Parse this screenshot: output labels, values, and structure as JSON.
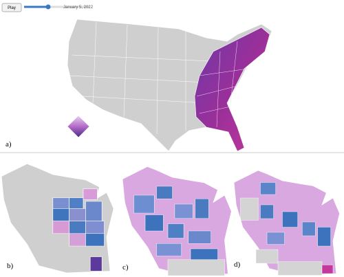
{
  "controls": {
    "play": "Play",
    "date": "January 5, 2022"
  },
  "panels": {
    "a": "a)",
    "b": "b)",
    "c": "c)",
    "d": "d)"
  }
}
